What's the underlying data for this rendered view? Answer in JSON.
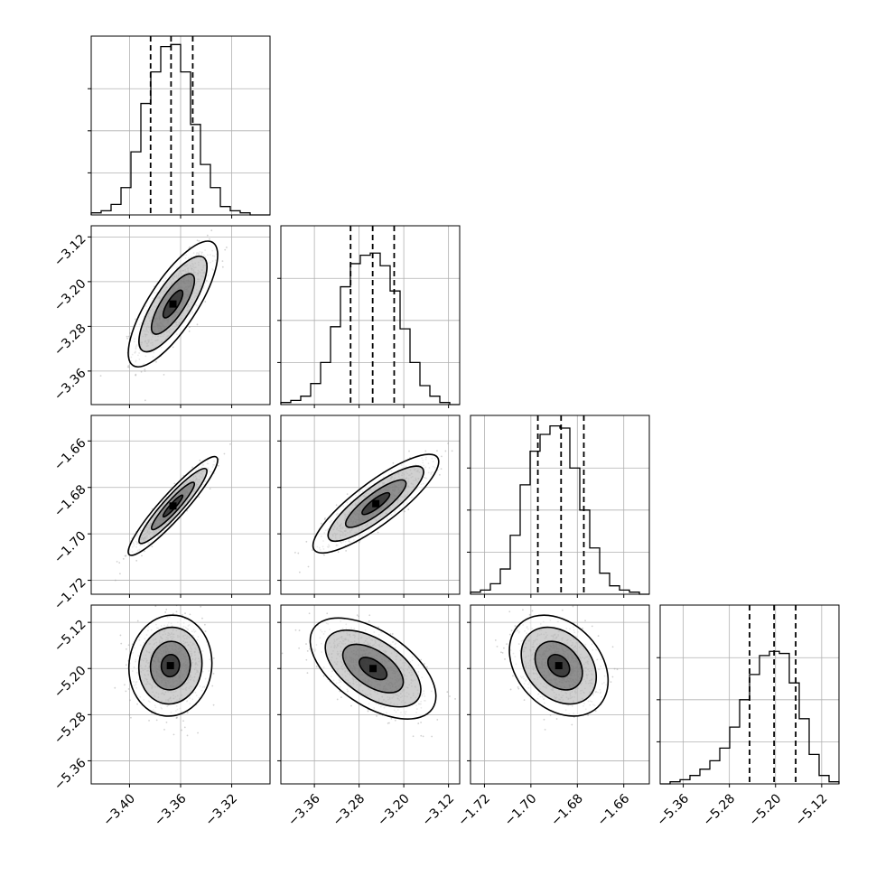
{
  "figure": {
    "type": "corner_plot",
    "n_params": 4,
    "grid": true,
    "colors": {
      "ink": "#000000",
      "grid": "#b0b0b0",
      "background": "#ffffff",
      "scatter": "#9a9a9a"
    }
  },
  "chart_data": [
    {
      "type": "histogram",
      "param": 0,
      "x_range": [
        -3.43,
        -3.29
      ],
      "ticks": [
        -3.4,
        -3.36,
        -3.32
      ],
      "values": [
        0.01,
        0.02,
        0.05,
        0.13,
        0.3,
        0.53,
        0.68,
        0.8,
        0.81,
        0.68,
        0.43,
        0.24,
        0.13,
        0.04,
        0.02,
        0.01,
        0.0,
        0.0
      ],
      "quantiles": [
        -3.3835,
        -3.3675,
        -3.3505
      ]
    },
    {
      "type": "scatter_contour",
      "x_param": 0,
      "y_param": 1,
      "x_range": [
        -3.43,
        -3.29
      ],
      "y_range": [
        -3.42,
        -3.1
      ],
      "x_ticks": [
        -3.4,
        -3.36,
        -3.32
      ],
      "y_ticks": [
        -3.12,
        -3.2,
        -3.28,
        -3.36
      ],
      "mean": [
        -3.366,
        -3.24
      ],
      "sd": [
        0.014,
        0.045
      ],
      "rho": 0.78
    },
    {
      "type": "histogram",
      "param": 1,
      "x_range": [
        -3.42,
        -3.1
      ],
      "ticks": [
        -3.36,
        -3.28,
        -3.2,
        -3.12
      ],
      "values": [
        0.01,
        0.02,
        0.04,
        0.1,
        0.2,
        0.37,
        0.56,
        0.67,
        0.71,
        0.72,
        0.66,
        0.54,
        0.36,
        0.2,
        0.09,
        0.04,
        0.01,
        0.0
      ],
      "quantiles": [
        -3.2952,
        -3.2557,
        -3.2172
      ]
    },
    {
      "type": "scatter_contour",
      "x_param": 0,
      "y_param": 2,
      "x_range": [
        -3.43,
        -3.29
      ],
      "y_range": [
        -1.726,
        -1.649
      ],
      "x_ticks": [
        -3.4,
        -3.36,
        -3.32
      ],
      "y_ticks": [
        -1.66,
        -1.68,
        -1.7,
        -1.72
      ],
      "mean": [
        -3.366,
        -1.688
      ],
      "sd": [
        0.014,
        0.0085
      ],
      "rho": 0.93
    },
    {
      "type": "scatter_contour",
      "x_param": 1,
      "y_param": 2,
      "x_range": [
        -3.42,
        -3.1
      ],
      "y_range": [
        -1.726,
        -1.649
      ],
      "x_ticks": [
        -3.36,
        -3.28,
        -3.2,
        -3.12
      ],
      "y_ticks": [
        -1.66,
        -1.68,
        -1.7,
        -1.72
      ],
      "mean": [
        -3.25,
        -1.687
      ],
      "sd": [
        0.045,
        0.0085
      ],
      "rho": 0.85
    },
    {
      "type": "histogram",
      "param": 2,
      "x_range": [
        -1.726,
        -1.649
      ],
      "ticks": [
        -1.72,
        -1.7,
        -1.68,
        -1.66
      ],
      "values": [
        0.01,
        0.02,
        0.05,
        0.12,
        0.28,
        0.52,
        0.68,
        0.76,
        0.8,
        0.79,
        0.6,
        0.4,
        0.22,
        0.1,
        0.04,
        0.02,
        0.01,
        0.0
      ],
      "quantiles": [
        -1.697,
        -1.687,
        -1.6772
      ]
    },
    {
      "type": "scatter_contour",
      "x_param": 0,
      "y_param": 3,
      "x_range": [
        -3.43,
        -3.29
      ],
      "y_range": [
        -5.4,
        -5.09
      ],
      "x_ticks": [
        -3.4,
        -3.36,
        -3.32
      ],
      "y_ticks": [
        -5.12,
        -5.2,
        -5.28,
        -5.36
      ],
      "mean": [
        -3.368,
        -5.195
      ],
      "sd": [
        0.013,
        0.035
      ],
      "rho": 0.05
    },
    {
      "type": "scatter_contour",
      "x_param": 1,
      "y_param": 3,
      "x_range": [
        -3.42,
        -3.1
      ],
      "y_range": [
        -5.4,
        -5.09
      ],
      "x_ticks": [
        -3.36,
        -3.28,
        -3.2,
        -3.12
      ],
      "y_ticks": [
        -5.12,
        -5.2,
        -5.28,
        -5.36
      ],
      "mean": [
        -3.255,
        -5.2
      ],
      "sd": [
        0.045,
        0.035
      ],
      "rho": -0.55
    },
    {
      "type": "scatter_contour",
      "x_param": 2,
      "y_param": 3,
      "x_range": [
        -1.726,
        -1.649
      ],
      "y_range": [
        -5.4,
        -5.09
      ],
      "x_ticks": [
        -1.72,
        -1.7,
        -1.68,
        -1.66
      ],
      "y_ticks": [
        -5.12,
        -5.2,
        -5.28,
        -5.36
      ],
      "mean": [
        -1.688,
        -5.195
      ],
      "sd": [
        0.0085,
        0.035
      ],
      "rho": -0.3
    },
    {
      "type": "histogram",
      "param": 3,
      "x_range": [
        -5.4,
        -5.09
      ],
      "ticks": [
        -5.36,
        -5.28,
        -5.2,
        -5.12
      ],
      "values": [
        0.0,
        0.01,
        0.02,
        0.04,
        0.07,
        0.11,
        0.17,
        0.27,
        0.4,
        0.52,
        0.61,
        0.63,
        0.62,
        0.48,
        0.31,
        0.14,
        0.04,
        0.01
      ],
      "quantiles": [
        -5.245,
        -5.2025,
        -5.165
      ]
    }
  ]
}
